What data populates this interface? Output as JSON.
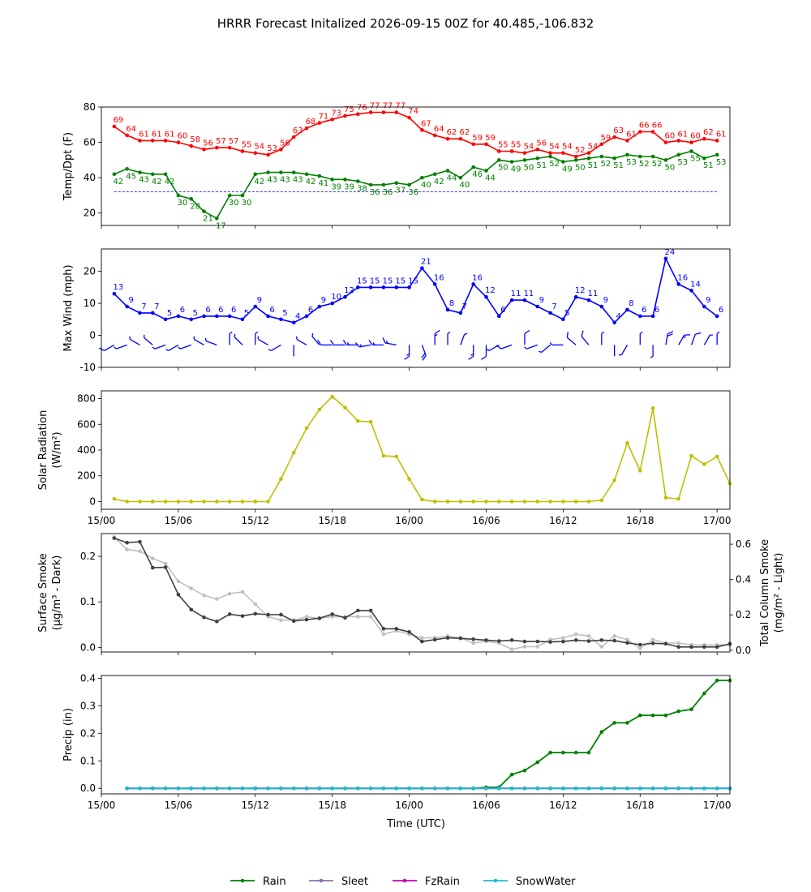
{
  "title": "HRRR Forecast Initalized 2026-09-15 00Z for 40.485,-106.832",
  "x_tick_labels": [
    "15/00",
    "15/06",
    "15/12",
    "15/18",
    "16/00",
    "16/06",
    "16/12",
    "16/18",
    "17/00"
  ],
  "x_axis_label": "Time (UTC)",
  "chart_data": [
    {
      "type": "line",
      "ylabel": "Temp/Dpt (F)",
      "ylim": [
        13,
        80
      ],
      "yticks": [
        20,
        40,
        60,
        80
      ],
      "x_range_hours": [
        0,
        49
      ],
      "x_hours_start": 1,
      "reference_line": {
        "value": 32,
        "color": "#0000ff",
        "style": "dashed"
      },
      "series": [
        {
          "key": "temp",
          "color": "#ff0000",
          "labels_position": "above",
          "values": [
            69,
            64,
            61,
            61,
            61,
            60,
            58,
            56,
            57,
            57,
            55,
            54,
            53,
            56,
            63,
            68,
            71,
            73,
            75,
            76,
            77,
            77,
            77,
            74,
            67,
            64,
            62,
            62,
            59,
            59,
            55,
            55,
            54,
            56,
            54,
            54,
            52,
            54,
            59,
            63,
            61,
            66,
            66,
            60,
            61,
            60,
            62,
            61
          ]
        },
        {
          "key": "dewpoint",
          "color": "#008000",
          "labels_position": "below",
          "values": [
            42,
            45,
            43,
            42,
            42,
            30,
            28,
            21,
            17,
            30,
            30,
            42,
            43,
            43,
            43,
            42,
            41,
            39,
            39,
            38,
            36,
            36,
            37,
            36,
            40,
            42,
            44,
            40,
            46,
            44,
            50,
            49,
            50,
            51,
            52,
            49,
            50,
            51,
            52,
            51,
            53,
            52,
            52,
            50,
            53,
            55,
            51,
            53
          ]
        }
      ]
    },
    {
      "type": "line",
      "ylabel": "Max Wind (mph)",
      "ylim": [
        -10,
        27
      ],
      "yticks": [
        -10,
        0,
        10,
        20
      ],
      "x_hours_start": 1,
      "series": [
        {
          "key": "wind",
          "color": "#0000ff",
          "labels_position": "above",
          "values": [
            13,
            9,
            7,
            7,
            5,
            6,
            5,
            6,
            6,
            6,
            5,
            9,
            6,
            5,
            4,
            6,
            9,
            10,
            12,
            15,
            15,
            15,
            15,
            15,
            21,
            16,
            8,
            7,
            16,
            12,
            6,
            11,
            11,
            9,
            7,
            5,
            12,
            11,
            9,
            4,
            8,
            6,
            6,
            24,
            16,
            14,
            9,
            6
          ]
        }
      ],
      "wind_barbs": {
        "y_value": -3,
        "color": "#0000ff",
        "directions_deg": [
          240,
          250,
          300,
          310,
          250,
          240,
          250,
          300,
          290,
          0,
          315,
          0,
          300,
          240,
          180,
          300,
          320,
          270,
          270,
          270,
          260,
          270,
          280,
          180,
          160,
          0,
          0,
          20,
          180,
          180,
          240,
          250,
          0,
          250,
          230,
          270,
          310,
          320,
          0,
          180,
          210,
          0,
          180,
          10,
          30,
          20,
          30,
          0
        ]
      }
    },
    {
      "type": "line",
      "ylabel_lines": [
        "Solar Radiation",
        "(W/m²)"
      ],
      "ylim": [
        -60,
        860
      ],
      "yticks": [
        0,
        200,
        400,
        600,
        800
      ],
      "x_hours_start": 1,
      "series": [
        {
          "key": "solar",
          "color": "#bfbf00",
          "values": [
            20,
            0,
            0,
            0,
            0,
            0,
            0,
            0,
            0,
            0,
            0,
            0,
            0,
            175,
            380,
            570,
            715,
            815,
            730,
            625,
            620,
            355,
            350,
            175,
            15,
            0,
            0,
            0,
            0,
            0,
            0,
            0,
            0,
            0,
            0,
            0,
            0,
            0,
            10,
            165,
            455,
            240,
            725,
            30,
            20,
            355,
            290,
            350,
            140
          ]
        }
      ]
    },
    {
      "type": "line",
      "ylabel_lines": [
        "Surface Smoke",
        "(µg/m³ - Dark)"
      ],
      "y2label_lines": [
        "Total Column Smoke",
        "(mg/m² - Light)"
      ],
      "ylim": [
        -0.01,
        0.25
      ],
      "yticks": [
        0.0,
        0.1,
        0.2
      ],
      "y2lim": [
        -0.01,
        0.66
      ],
      "y2ticks": [
        0.0,
        0.2,
        0.4,
        0.6
      ],
      "x_hours_start": 1,
      "series": [
        {
          "key": "surface_smoke",
          "color": "#404040",
          "axis": "left",
          "values": [
            0.24,
            0.23,
            0.232,
            0.175,
            0.176,
            0.116,
            0.083,
            0.066,
            0.057,
            0.073,
            0.069,
            0.074,
            0.072,
            0.072,
            0.058,
            0.061,
            0.064,
            0.073,
            0.065,
            0.081,
            0.081,
            0.041,
            0.041,
            0.034,
            0.013,
            0.017,
            0.021,
            0.02,
            0.018,
            0.016,
            0.014,
            0.016,
            0.013,
            0.013,
            0.012,
            0.013,
            0.016,
            0.014,
            0.016,
            0.015,
            0.01,
            0.006,
            0.009,
            0.008,
            0.001,
            0.001,
            0.001,
            0.001,
            0.008
          ]
        },
        {
          "key": "column_smoke",
          "color": "#c0c0c0",
          "axis": "right",
          "values": [
            0.64,
            0.57,
            0.56,
            0.52,
            0.49,
            0.39,
            0.35,
            0.31,
            0.29,
            0.32,
            0.33,
            0.26,
            0.19,
            0.17,
            0.17,
            0.19,
            0.18,
            0.19,
            0.19,
            0.19,
            0.19,
            0.09,
            0.11,
            0.09,
            0.07,
            0.07,
            0.08,
            0.07,
            0.04,
            0.05,
            0.04,
            0.005,
            0.02,
            0.02,
            0.06,
            0.07,
            0.09,
            0.08,
            0.02,
            0.08,
            0.06,
            0.01,
            0.06,
            0.04,
            0.04,
            0.03,
            0.03,
            0.03,
            0.03
          ]
        }
      ]
    },
    {
      "type": "line",
      "ylabel": "Precip (in)",
      "ylim": [
        -0.02,
        0.41
      ],
      "yticks": [
        0.0,
        0.1,
        0.2,
        0.3,
        0.4
      ],
      "x_hours_start": 2,
      "series": [
        {
          "name": "Rain",
          "key": "rain",
          "color": "#008000",
          "values": [
            0,
            0,
            0,
            0,
            0,
            0,
            0,
            0,
            0,
            0,
            0,
            0,
            0,
            0,
            0,
            0,
            0,
            0,
            0,
            0,
            0,
            0,
            0,
            0,
            0,
            0,
            0,
            0,
            0.004,
            0.004,
            0.05,
            0.065,
            0.095,
            0.13,
            0.13,
            0.13,
            0.13,
            0.205,
            0.238,
            0.238,
            0.265,
            0.265,
            0.265,
            0.28,
            0.287,
            0.345,
            0.392,
            0.392
          ]
        },
        {
          "name": "Sleet",
          "key": "sleet",
          "color": "#8a6fa8",
          "values": [
            0,
            0,
            0,
            0,
            0,
            0,
            0,
            0,
            0,
            0,
            0,
            0,
            0,
            0,
            0,
            0,
            0,
            0,
            0,
            0,
            0,
            0,
            0,
            0,
            0,
            0,
            0,
            0,
            0,
            0,
            0,
            0,
            0,
            0,
            0,
            0,
            0,
            0,
            0,
            0,
            0,
            0,
            0,
            0,
            0,
            0,
            0,
            0
          ]
        },
        {
          "name": "FzRain",
          "key": "fzrain",
          "color": "#bf00bf",
          "values": [
            0,
            0,
            0,
            0,
            0,
            0,
            0,
            0,
            0,
            0,
            0,
            0,
            0,
            0,
            0,
            0,
            0,
            0,
            0,
            0,
            0,
            0,
            0,
            0,
            0,
            0,
            0,
            0,
            0,
            0,
            0,
            0,
            0,
            0,
            0,
            0,
            0,
            0,
            0,
            0,
            0,
            0,
            0,
            0,
            0,
            0,
            0,
            0
          ]
        },
        {
          "name": "SnowWater",
          "key": "snowwater",
          "color": "#17becf",
          "values": [
            0,
            0,
            0,
            0,
            0,
            0,
            0,
            0,
            0,
            0,
            0,
            0,
            0,
            0,
            0,
            0,
            0,
            0,
            0,
            0,
            0,
            0,
            0,
            0,
            0,
            0,
            0,
            0,
            0,
            0,
            0,
            0,
            0,
            0,
            0,
            0,
            0,
            0,
            0,
            0,
            0,
            0,
            0,
            0,
            0,
            0,
            0,
            0
          ]
        }
      ],
      "legend_position": "bottom-center"
    }
  ]
}
